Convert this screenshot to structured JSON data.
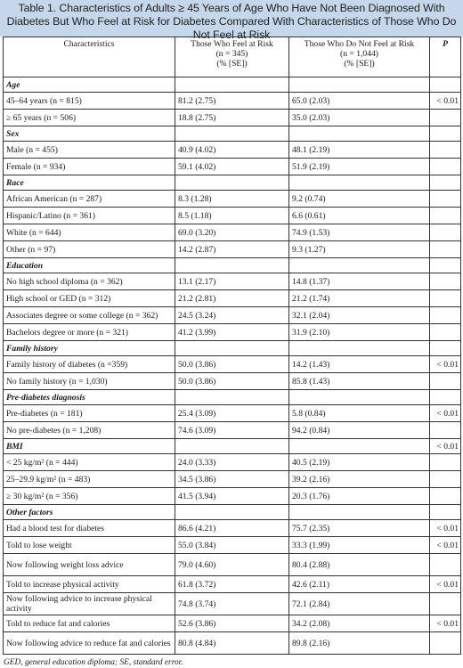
{
  "title": "Table 1. Characteristics of Adults ≥ 45 Years of Age Who Have Not Been Diagnosed With Diabetes But Who Feel at Risk for Diabetes Compared With Characteristics of Those Who Do Not Feel at Risk",
  "headers": {
    "characteristics": "Characteristics",
    "at_risk": [
      "Those Who Feel at Risk",
      "(n = 345)",
      "(% [SE])"
    ],
    "not_at_risk": [
      "Those Who Do Not Feel at Risk",
      "(n = 1,044)",
      "(% [SE])"
    ],
    "p": "P"
  },
  "sections": [
    {
      "name": "Age",
      "section_p": "",
      "rows": [
        {
          "label": "45–64 years (n = 815)",
          "a": "81.2 (2.75)",
          "b": "65.0 (2.03)",
          "p": "< 0.01"
        },
        {
          "label": "≥ 65 years (n = 506)",
          "a": "18.8 (2.75)",
          "b": "35.0 (2.03)",
          "p": ""
        }
      ]
    },
    {
      "name": "Sex",
      "section_p": "",
      "rows": [
        {
          "label": "Male (n = 455)",
          "a": "40.9 (4.02)",
          "b": "48.1 (2.19)",
          "p": ""
        },
        {
          "label": "Female (n = 934)",
          "a": "59.1 (4.02)",
          "b": "51.9 (2.19)",
          "p": ""
        }
      ]
    },
    {
      "name": "Race",
      "section_p": "",
      "rows": [
        {
          "label": "African American (n = 287)",
          "a": "8.3 (1.28)",
          "b": "9.2 (0.74)",
          "p": ""
        },
        {
          "label": "Hispanic/Latino (n = 361)",
          "a": "8.5 (1.18)",
          "b": "6.6 (0.61)",
          "p": ""
        },
        {
          "label": "White (n = 644)",
          "a": "69.0 (3.20)",
          "b": "74.9 (1.53)",
          "p": ""
        },
        {
          "label": "Other (n = 97)",
          "a": "14.2 (2.87)",
          "b": "9.3 (1.27)",
          "p": ""
        }
      ]
    },
    {
      "name": "Education",
      "section_p": "",
      "rows": [
        {
          "label": "No high school diploma (n = 362)",
          "a": "13.1 (2.17)",
          "b": "14.8 (1.37)",
          "p": ""
        },
        {
          "label": "High school or GED (n = 312)",
          "a": "21.2 (2.81)",
          "b": "21.2 (1.74)",
          "p": ""
        },
        {
          "label": "Associates degree or some college (n = 362)",
          "a": "24.5 (3.24)",
          "b": "32.1 (2.04)",
          "p": ""
        },
        {
          "label": "Bachelors degree or more (n = 321)",
          "a": "41.2 (3.99)",
          "b": "31.9 (2.10)",
          "p": ""
        }
      ]
    },
    {
      "name": "Family history",
      "section_p": "",
      "rows": [
        {
          "label": "Family history of diabetes (n =359)",
          "a": "50.0 (3.86)",
          "b": "14.2 (1.43)",
          "p": "< 0.01"
        },
        {
          "label": "No family history (n = 1,030)",
          "a": "50.0 (3.86)",
          "b": "85.8 (1.43)",
          "p": ""
        }
      ]
    },
    {
      "name": "Pre-diabetes diagnosis",
      "section_p": "",
      "rows": [
        {
          "label": "Pre-diabetes (n = 181)",
          "a": "25.4 (3.09)",
          "b": "5.8 (0.84)",
          "p": "< 0.01"
        },
        {
          "label": "No pre-diabetes (n = 1,208)",
          "a": "74.6 (3.09)",
          "b": "94.2 (0.84)",
          "p": ""
        }
      ]
    },
    {
      "name": "BMI",
      "section_p": "< 0.01",
      "rows": [
        {
          "label": "< 25 kg/m² (n = 444)",
          "a": "24.0 (3.33)",
          "b": "40.5 (2.19)",
          "p": ""
        },
        {
          "label": "25–29.9 kg/m² (n = 483)",
          "a": "34.5 (3.86)",
          "b": "39.2 (2.16)",
          "p": ""
        },
        {
          "label": "≥ 30 kg/m² (n = 356)",
          "a": "41.5 (3.94)",
          "b": "20.3 (1.76)",
          "p": ""
        }
      ]
    },
    {
      "name": "Other factors",
      "section_p": "",
      "rows": [
        {
          "label": "Had a blood test for diabetes",
          "a": "86.6 (4.21)",
          "b": "75.7 (2.35)",
          "p": "< 0.01"
        },
        {
          "label": "Told to lose weight",
          "a": "55.0 (3.84)",
          "b": "33.3 (1.99)",
          "p": "< 0.01"
        },
        {
          "label": "Now following weight loss advice",
          "a": "79.0 (4.60)",
          "b": "80.4 (2.88)",
          "p": "",
          "tall": true
        },
        {
          "label": "Told to increase physical activity",
          "a": "61.8 (3.72)",
          "b": "42.6 (2.11)",
          "p": "< 0.01"
        },
        {
          "label": "Now following advice to increase physical activity",
          "a": "74.8 (3.74)",
          "b": "72.1 (2.84)",
          "p": "",
          "tall": true
        },
        {
          "label": "Told to reduce fat and calories",
          "a": "52.6 (3.86)",
          "b": "34.2 (2.08)",
          "p": "< 0.01"
        },
        {
          "label": "Now following advice to reduce fat and calories",
          "a": "80.8 (4.84)",
          "b": "89.8 (2.16)",
          "p": "",
          "tall": true
        }
      ]
    }
  ],
  "footnote": "GED, general education diploma; SE, standard error.",
  "colors": {
    "title_bg": "#c5d7ea"
  }
}
